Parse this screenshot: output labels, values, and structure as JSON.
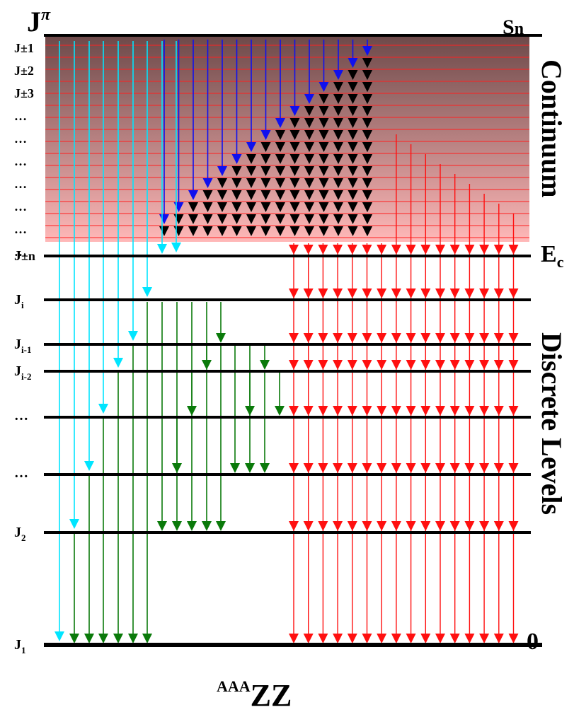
{
  "title": {
    "main": "J",
    "sup": "π"
  },
  "top_level": {
    "label": "S",
    "sub": "n"
  },
  "cutoff_level": {
    "label": "E",
    "sub": "c"
  },
  "ground_level": {
    "label": "0"
  },
  "continuum_label": "Continuum",
  "discrete_label": "Discrete Levels",
  "nucleus": {
    "mass": "AAA",
    "symbol": "ZZ"
  },
  "continuum_spins": [
    "J±1",
    "J±2",
    "J±3",
    "…",
    "…",
    "…",
    "…",
    "…",
    "…",
    "…"
  ],
  "discrete_levels": [
    {
      "main": "J",
      "sub": "±n"
    },
    {
      "main": "J",
      "sub": "i"
    },
    {
      "main": "J",
      "sub": "i-1"
    },
    {
      "main": "J",
      "sub": "i-2"
    },
    {
      "main": "…",
      "sub": ""
    },
    {
      "main": "…",
      "sub": ""
    },
    {
      "main": "J",
      "sub": "2"
    },
    {
      "main": "J",
      "sub": "1"
    }
  ],
  "colors": {
    "continuum_top": "#6e4a4a",
    "continuum_bottom": "#ffb8b8",
    "continuum_lines": "#ff2020",
    "arrow_cyan": "#00e5ff",
    "arrow_blue": "#1010ee",
    "arrow_black": "#000000",
    "arrow_green": "#0a7a0a",
    "arrow_red": "#ff1010"
  }
}
